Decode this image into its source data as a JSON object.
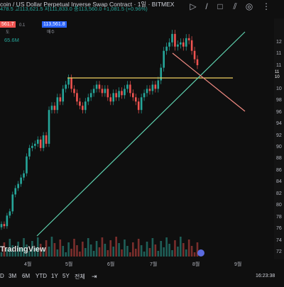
{
  "header": {
    "title": "coin / US Dollar Perpetual Inverse Swap Contract · 1일 · BITMEX",
    "ohlc": "478.5 고113,621.5 저111,833.0 종113,560.0 +1,081.5 (+0.96%)",
    "sell_price": "561.7",
    "sell_sub": "도",
    "spread": "0.1",
    "buy_price": "113,561.8",
    "buy_sub": "매수",
    "volume": "65.6M"
  },
  "watermark": "TradingView",
  "x_axis": [
    "4월",
    "5월",
    "6월",
    "7월",
    "8월",
    "9월"
  ],
  "y_axis": [
    "12",
    "11",
    "11",
    "10",
    "10",
    "98",
    "96",
    "94",
    "92",
    "90",
    "88",
    "86",
    "84",
    "82",
    "80",
    "78",
    "76",
    "74",
    "72"
  ],
  "timeframes": [
    "D",
    "3M",
    "6M",
    "YTD",
    "1Y",
    "5Y",
    "전체"
  ],
  "clock": "16:23:38",
  "price_tags": [
    "11",
    "10"
  ],
  "icons": {
    "top": [
      "play-icon",
      "slash-icon",
      "square-icon",
      "compare-icon",
      "eye-off-icon"
    ],
    "calendar": "calendar-range-icon"
  },
  "colors": {
    "up": "#26a69a",
    "down": "#ef5350",
    "trendline": "#5fd3b0",
    "resistance": "#f0d060",
    "downtrend": "#f28b82"
  },
  "chart_data": {
    "type": "candlestick",
    "ylim": [
      72000,
      124000
    ],
    "series": [
      {
        "name": "",
        "values": [
          76000,
          75500,
          78000,
          79000,
          83000,
          84500,
          85500,
          87000,
          88000,
          92000,
          94000,
          94500,
          95000,
          96000,
          94000,
          97000,
          95000,
          103000,
          104000,
          103000,
          106000,
          105000,
          108000,
          109000,
          110500,
          108000,
          107000,
          105000,
          104000,
          103000,
          105000,
          106000,
          107000,
          108000,
          109000,
          108000,
          107000,
          108000,
          106000,
          105000,
          107000,
          106000,
          107500,
          106500,
          108000,
          109000,
          107000,
          106000,
          105000,
          103000,
          106000,
          107000,
          108000,
          107500,
          109000,
          108000,
          110000,
          113000,
          117000,
          118000,
          119000,
          121000,
          118000,
          118500,
          119000,
          118000,
          120000,
          119500,
          117000,
          115000,
          113600
        ]
      }
    ]
  }
}
